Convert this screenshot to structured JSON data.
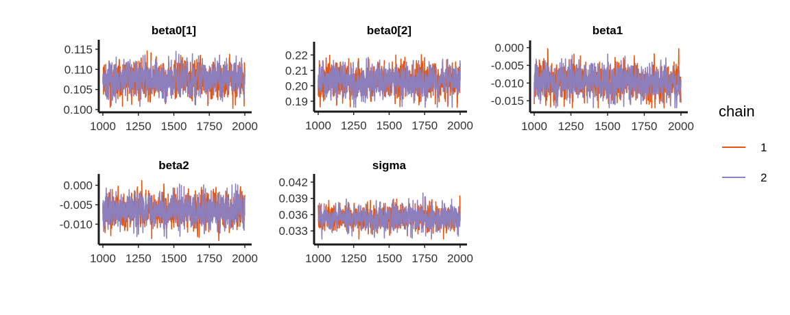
{
  "chart_data": [
    {
      "type": "line",
      "title": "beta0[1]",
      "x_range": [
        1000,
        2000
      ],
      "x_ticks": [
        1000,
        1250,
        1500,
        1750,
        2000
      ],
      "y_range": [
        0.1,
        0.116
      ],
      "y_ticks": [
        0.1,
        0.105,
        0.11,
        0.115
      ],
      "y_tick_labels": [
        "0.100",
        "0.105",
        "0.110",
        "0.115"
      ],
      "trace_summary": {
        "center": 0.1075,
        "spread": 0.0022,
        "min": 0.1003,
        "max": 0.1155
      },
      "series": [
        {
          "name": "1",
          "color": "#E6550D"
        },
        {
          "name": "2",
          "color": "#8C7FBC"
        }
      ]
    },
    {
      "type": "line",
      "title": "beta0[2]",
      "x_range": [
        1000,
        2000
      ],
      "x_ticks": [
        1000,
        1250,
        1500,
        1750,
        2000
      ],
      "y_range": [
        0.185,
        0.225
      ],
      "y_ticks": [
        0.19,
        0.2,
        0.21,
        0.22
      ],
      "y_tick_labels": [
        "0.19",
        "0.20",
        "0.21",
        "0.22"
      ],
      "trace_summary": {
        "center": 0.2035,
        "spread": 0.0055,
        "min": 0.186,
        "max": 0.224
      },
      "series": [
        {
          "name": "1",
          "color": "#E6550D"
        },
        {
          "name": "2",
          "color": "#8C7FBC"
        }
      ]
    },
    {
      "type": "line",
      "title": "beta1",
      "x_range": [
        1000,
        2000
      ],
      "x_ticks": [
        1000,
        1250,
        1500,
        1750,
        2000
      ],
      "y_range": [
        -0.0175,
        0.0005
      ],
      "y_ticks": [
        -0.015,
        -0.01,
        -0.005,
        0.0
      ],
      "y_tick_labels": [
        "-0.015",
        "-0.010",
        "-0.005",
        "0.000"
      ],
      "trace_summary": {
        "center": -0.0098,
        "spread": 0.0025,
        "min": -0.017,
        "max": -0.0003
      },
      "series": [
        {
          "name": "1",
          "color": "#E6550D"
        },
        {
          "name": "2",
          "color": "#8C7FBC"
        }
      ]
    },
    {
      "type": "line",
      "title": "beta2",
      "x_range": [
        1000,
        2000
      ],
      "x_ticks": [
        1000,
        1250,
        1500,
        1750,
        2000
      ],
      "y_range": [
        -0.0145,
        0.0015
      ],
      "y_ticks": [
        -0.01,
        -0.005,
        0.0
      ],
      "y_tick_labels": [
        "-0.010",
        "-0.005",
        "0.000"
      ],
      "trace_summary": {
        "center": -0.0065,
        "spread": 0.0022,
        "min": -0.0142,
        "max": 0.0012
      },
      "series": [
        {
          "name": "1",
          "color": "#E6550D"
        },
        {
          "name": "2",
          "color": "#8C7FBC"
        }
      ]
    },
    {
      "type": "line",
      "title": "sigma",
      "x_range": [
        1000,
        2000
      ],
      "x_ticks": [
        1000,
        1250,
        1500,
        1750,
        2000
      ],
      "y_range": [
        0.031,
        0.0425
      ],
      "y_ticks": [
        0.033,
        0.036,
        0.039,
        0.042
      ],
      "y_tick_labels": [
        "0.033",
        "0.036",
        "0.039",
        "0.042"
      ],
      "trace_summary": {
        "center": 0.0355,
        "spread": 0.0012,
        "min": 0.0315,
        "max": 0.0415
      },
      "series": [
        {
          "name": "1",
          "color": "#E6550D"
        },
        {
          "name": "2",
          "color": "#8C7FBC"
        }
      ]
    }
  ],
  "legend": {
    "title": "chain",
    "items": [
      {
        "label": "1",
        "color": "#E6550D"
      },
      {
        "label": "2",
        "color": "#8C7FBC"
      }
    ]
  }
}
